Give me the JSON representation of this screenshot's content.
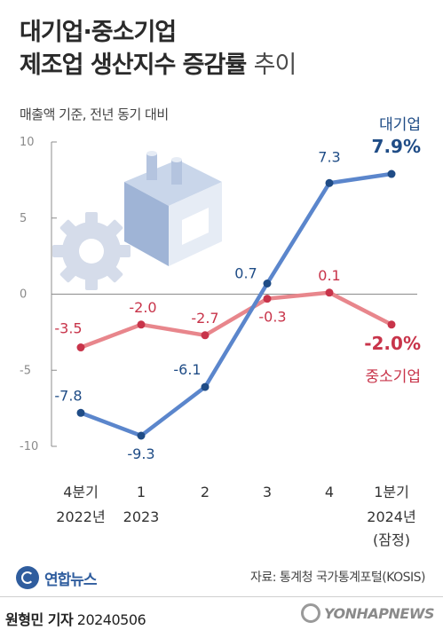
{
  "title_line1": "대기업·중소기업",
  "title_line2_bold": "제조업 생산지수 증감률",
  "title_line2_light": "추이",
  "subtitle": "매출액 기준, 전년 동기 대비",
  "source": "자료: 통계청 국가통계포털(KOSIS)",
  "logo_text": "연합뉴스",
  "credit_name": "원형민 기자",
  "credit_date": "20240506",
  "watermark": "YONHAPNEWS",
  "colors": {
    "large": "#5b86cc",
    "large_dark": "#1f4c86",
    "sme": "#e8868c",
    "sme_dark": "#c8344a"
  },
  "chart_data": {
    "type": "line",
    "categories": [
      {
        "top": "4분기",
        "bottom": "2022년",
        "extra": ""
      },
      {
        "top": "1",
        "bottom": "2023",
        "extra": ""
      },
      {
        "top": "2",
        "bottom": "",
        "extra": ""
      },
      {
        "top": "3",
        "bottom": "",
        "extra": ""
      },
      {
        "top": "4",
        "bottom": "",
        "extra": ""
      },
      {
        "top": "1분기",
        "bottom": "2024년",
        "extra": "(잠정)"
      }
    ],
    "series": [
      {
        "name": "대기업",
        "values": [
          -7.8,
          -9.3,
          -6.1,
          0.7,
          7.3,
          7.9
        ],
        "labels": [
          "-7.8",
          "-9.3",
          "-6.1",
          "0.7",
          "7.3",
          "7.9%"
        ]
      },
      {
        "name": "중소기업",
        "values": [
          -3.5,
          -2.0,
          -2.7,
          -0.3,
          0.1,
          -2.0
        ],
        "labels": [
          "-3.5",
          "-2.0",
          "-2.7",
          "-0.3",
          "0.1",
          "-2.0%"
        ]
      }
    ],
    "y_ticks": [
      "10",
      "5",
      "0",
      "-5",
      "-10"
    ],
    "ylim": [
      -10,
      10
    ],
    "grid": false
  }
}
